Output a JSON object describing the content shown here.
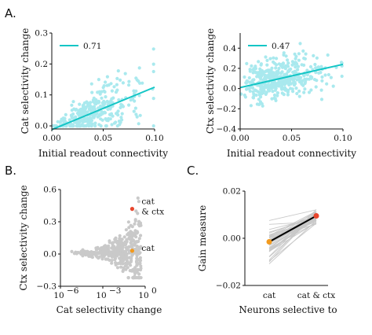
{
  "panel_labels": {
    "a": "A.",
    "b": "B.",
    "c": "C."
  },
  "colors": {
    "cyan": "#14c6c6",
    "cyan_point": "#a9e9ee",
    "gray_point": "#c9c9c9",
    "red": "#e8462d",
    "orange": "#f29a1e",
    "line_black": "#000000",
    "gray_line": "#c8c8c8"
  },
  "chart_data": [
    {
      "id": "A-left",
      "type": "scatter",
      "title": "",
      "xlabel": "Initial readout connectivity",
      "ylabel": "Cat selectivity change",
      "xlim": [
        0.0,
        0.1
      ],
      "ylim": [
        -0.01,
        0.3
      ],
      "xticks": [
        "0.00",
        "0.05",
        "0.10"
      ],
      "yticks": [
        "0.0",
        "0.1",
        "0.2",
        "0.3"
      ],
      "xtick_values": [
        0.0,
        0.05,
        0.1
      ],
      "ytick_values": [
        0.0,
        0.1,
        0.2,
        0.3
      ],
      "legend": {
        "label": "0.71",
        "position": "top-left"
      },
      "fit_line": {
        "x": [
          0.0,
          0.1
        ],
        "y": [
          -0.012,
          0.125
        ]
      },
      "series": [
        {
          "x": [],
          "y": []
        }
      ]
    },
    {
      "id": "A-right",
      "type": "scatter",
      "title": "",
      "xlabel": "Initial readout connectivity",
      "ylabel": "Ctx selectivity change",
      "xlim": [
        0.0,
        0.1
      ],
      "ylim": [
        -0.4,
        0.55
      ],
      "xticks": [
        "0.00",
        "0.05",
        "0.10"
      ],
      "yticks": [
        "−0.4",
        "−0.2",
        "0.0",
        "0.2",
        "0.4"
      ],
      "xtick_values": [
        0.0,
        0.05,
        0.1
      ],
      "ytick_values": [
        -0.4,
        -0.2,
        0.0,
        0.2,
        0.4
      ],
      "legend": {
        "label": "0.47",
        "position": "top-left"
      },
      "fit_line": {
        "x": [
          0.0,
          0.1
        ],
        "y": [
          0.01,
          0.24
        ]
      },
      "series": [
        {
          "x": [],
          "y": []
        }
      ]
    },
    {
      "id": "B",
      "type": "scatter",
      "title": "",
      "xlabel": "Cat selectivity change",
      "ylabel": "Ctx selectivity change",
      "xscale": "log",
      "xlim": [
        1e-06,
        1.0
      ],
      "ylim": [
        -0.3,
        0.6
      ],
      "xticks": [
        "10",
        "10",
        "10"
      ],
      "xtick_exponents": [
        "−6",
        "−3",
        "0"
      ],
      "xtick_values": [
        1e-06,
        0.001,
        1.0
      ],
      "yticks": [
        "−0.3",
        "0.0",
        "0.3",
        "0.6"
      ],
      "ytick_values": [
        -0.3,
        0.0,
        0.3,
        0.6
      ],
      "highlights": [
        {
          "label": "cat\n& ctx",
          "label_lines": [
            "cat",
            "& ctx"
          ],
          "x": 0.12,
          "y": 0.42,
          "color": "#e8462d"
        },
        {
          "label": "cat",
          "label_lines": [
            "cat"
          ],
          "x": 0.12,
          "y": 0.03,
          "color": "#f29a1e"
        }
      ],
      "series": [
        {
          "x": [],
          "y": []
        }
      ]
    },
    {
      "id": "C",
      "type": "line",
      "title": "",
      "xlabel": "Neurons selective to",
      "ylabel": "Gain measure",
      "categories": [
        "cat",
        "cat & ctx"
      ],
      "category_colors": [
        "#f29a1e",
        "#e8462d"
      ],
      "ylim": [
        -0.02,
        0.02
      ],
      "yticks": [
        "−0.02",
        "0.00",
        "0.02"
      ],
      "ytick_values": [
        -0.02,
        0.0,
        0.02
      ],
      "mean": [
        -0.0015,
        0.0095
      ],
      "individual_lines": []
    }
  ]
}
